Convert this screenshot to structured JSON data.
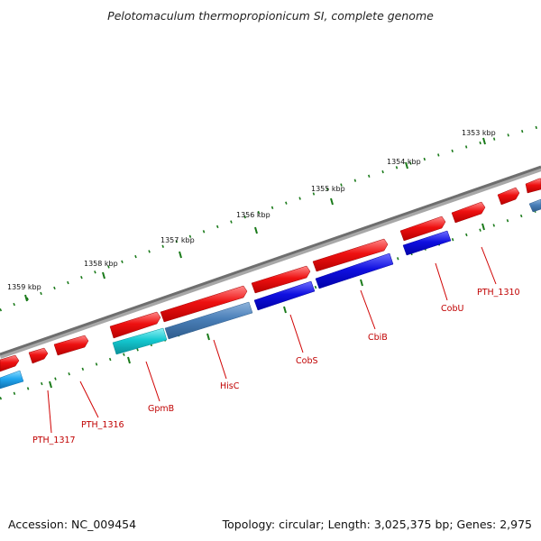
{
  "title": "Pelotomaculum thermopropionicum SI, complete genome",
  "footer": {
    "accession": "Accession: NC_009454",
    "summary": "Topology: circular; Length: 3,025,375 bp; Genes: 2,975"
  },
  "scale": {
    "ticks": [
      {
        "label": "1353 kbp"
      },
      {
        "label": "1354 kbp"
      },
      {
        "label": "1355 kbp"
      },
      {
        "label": "1356 kbp"
      },
      {
        "label": "1357 kbp"
      },
      {
        "label": "1358 kbp"
      },
      {
        "label": "1359 kbp"
      }
    ]
  },
  "genes": [
    {
      "label": "PTH_1310"
    },
    {
      "label": "CobU"
    },
    {
      "label": "CbiB"
    },
    {
      "label": "CobS"
    },
    {
      "label": "HisC"
    },
    {
      "label": "GpmB"
    },
    {
      "label": "PTH_1316"
    },
    {
      "label": "PTH_1317"
    }
  ],
  "colors": {
    "backbone": "#7a7a7a",
    "tick": "#1a7a1a",
    "forward_gene": "#ee1111",
    "reverse_gene": "#1010e0",
    "reverse_gene_alt": "#4a7fb8",
    "reverse_gene_cyan": "#14c8d0",
    "label": "#c00000"
  }
}
